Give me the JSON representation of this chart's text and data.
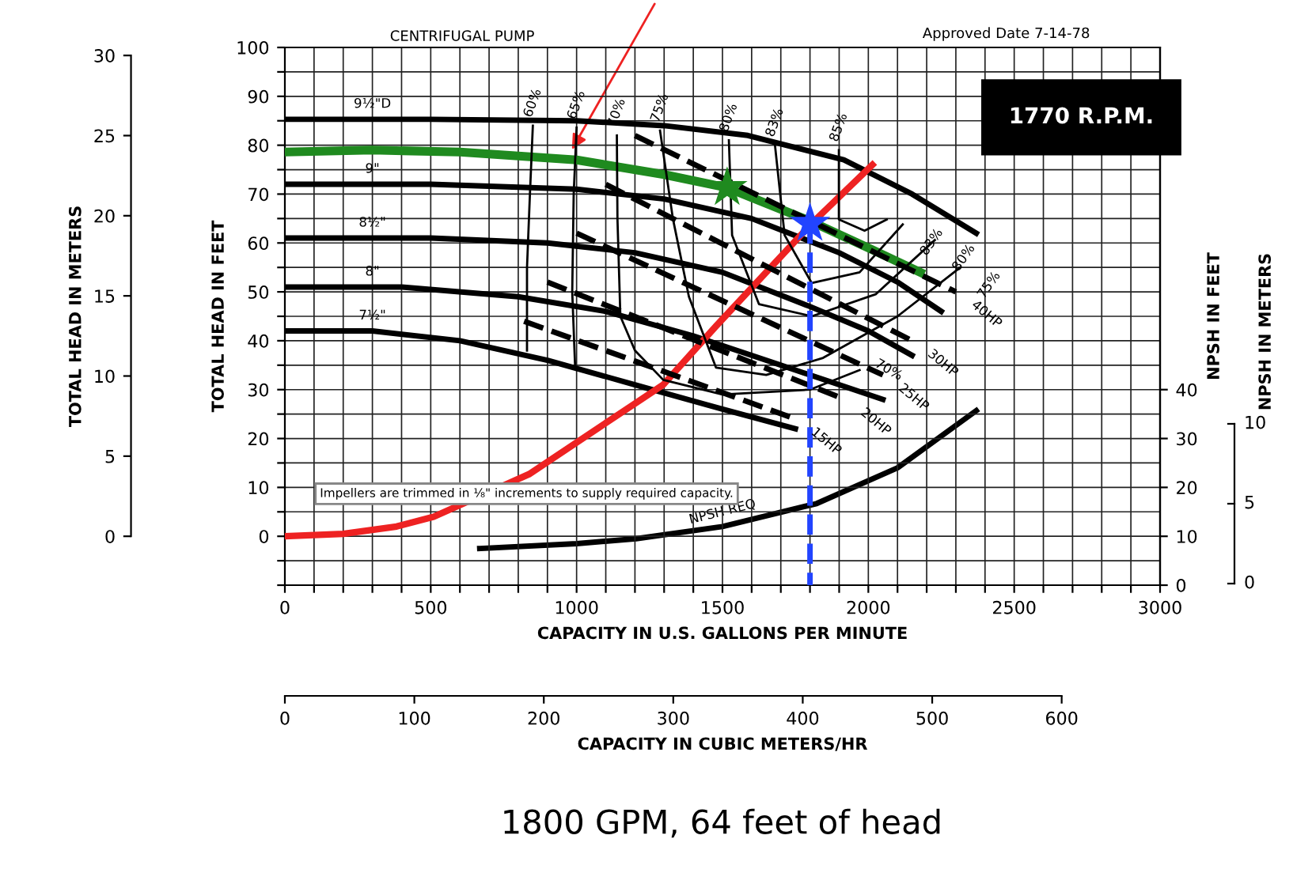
{
  "chart_data": {
    "type": "line",
    "title": "CENTRIFUGAL PUMP",
    "xlabel": "CAPACITY IN U.S. GALLONS PER MINUTE",
    "ylabel": "TOTAL HEAD IN FEET",
    "y2label": "TOTAL HEAD IN METERS",
    "y3label": "NPSH IN FEET",
    "x2label": "CAPACITY IN CUBIC METERS/HR",
    "xlim": [
      0,
      3000
    ],
    "ylim": [
      -10,
      100
    ],
    "y2lim": [
      -3.05,
      30.5
    ],
    "y3lim": [
      0,
      110
    ],
    "x2lim": [
      0,
      676
    ],
    "xticks": [
      0,
      {
        "value": 100,
        "label": null
      },
      {
        "value": 200,
        "label": null
      },
      {
        "value": 300,
        "label": null
      },
      {
        "value": 400,
        "label": null
      },
      500,
      {
        "value": 600,
        "label": null
      },
      {
        "value": 700,
        "label": null
      },
      {
        "value": 800,
        "label": null
      },
      {
        "value": 900,
        "label": null
      },
      1000,
      {
        "value": 1100,
        "label": null
      },
      {
        "value": 1200,
        "label": null
      },
      {
        "value": 1300,
        "label": null
      },
      {
        "value": 1400,
        "label": null
      },
      1500,
      {
        "value": 1600,
        "label": null
      },
      {
        "value": 1700,
        "label": null
      },
      {
        "value": 1800,
        "label": null
      },
      {
        "value": 1900,
        "label": null
      },
      2000,
      {
        "value": 2100,
        "label": null
      },
      {
        "value": 2200,
        "label": null
      },
      {
        "value": 2300,
        "label": null
      },
      {
        "value": 2400,
        "label": null
      },
      2500,
      {
        "value": 2600,
        "label": null
      },
      {
        "value": 2700,
        "label": null
      },
      {
        "value": 2800,
        "label": null
      },
      {
        "value": 2900,
        "label": null
      },
      3000
    ],
    "yticks": [
      {
        "value": -10,
        "label": null
      },
      {
        "value": -5,
        "label": null
      },
      0,
      {
        "value": 5,
        "label": null
      },
      10,
      {
        "value": 15,
        "label": null
      },
      20,
      {
        "value": 25,
        "label": null
      },
      30,
      {
        "value": 35,
        "label": null
      },
      40,
      {
        "value": 45,
        "label": null
      },
      50,
      {
        "value": 55,
        "label": null
      },
      60,
      {
        "value": 65,
        "label": null
      },
      70,
      {
        "value": 75,
        "label": null
      },
      80,
      {
        "value": 85,
        "label": null
      },
      90,
      {
        "value": 95,
        "label": null
      },
      100
    ],
    "y2ticks": [
      0,
      5,
      10,
      15,
      20,
      25,
      30
    ],
    "y3ticks": [
      0,
      10,
      20,
      30,
      40
    ],
    "x2ticks": [
      0,
      100,
      200,
      300,
      400,
      500,
      600
    ],
    "grid": true,
    "legend": false,
    "series": [
      {
        "color": "#000000",
        "x": [
          0,
          300,
          500,
          1000,
          1300,
          1587,
          1916,
          2150,
          2370
        ],
        "values": [
          85.3,
          85.3,
          85.3,
          85,
          84,
          82,
          77,
          70,
          62
        ]
      },
      {
        "color": "#000000",
        "x": [
          0,
          300,
          500,
          1000,
          1300,
          1600,
          1900,
          2100,
          2250
        ],
        "values": [
          72,
          72,
          72,
          71,
          69,
          65,
          58,
          52,
          46
        ]
      },
      {
        "color": "#000000",
        "x": [
          0,
          300,
          500,
          900,
          1200,
          1500,
          1800,
          2000,
          2150
        ],
        "values": [
          61,
          61,
          61,
          60,
          58,
          54,
          47,
          42,
          37
        ]
      },
      {
        "color": "#000000",
        "x": [
          0,
          300,
          400,
          800,
          1100,
          1400,
          1700,
          1900,
          2050
        ],
        "values": [
          51,
          51,
          51,
          49,
          46,
          41,
          35,
          31,
          28
        ]
      },
      {
        "color": "#000000",
        "x": [
          0,
          300,
          600,
          900,
          1200,
          1500,
          1750
        ],
        "values": [
          42,
          42,
          40,
          36,
          31,
          26,
          22
        ]
      },
      {
        "color": "#1f8a1f",
        "x": [
          0,
          300,
          600,
          1000,
          1300,
          1516,
          1800,
          2000,
          2178
        ],
        "values": [
          78.6,
          79,
          78.6,
          77,
          74,
          71.3,
          64.5,
          59,
          54
        ]
      },
      {
        "color": "#ee2222",
        "x": [
          0,
          200,
          383,
          510,
          837,
          1297,
          1478,
          1806,
          2014
        ],
        "values": [
          0,
          0.5,
          2,
          4,
          12.7,
          31,
          43,
          64,
          76
        ]
      },
      {
        "color": "#000000",
        "name": "NPSH REQ",
        "axis": "y3",
        "x": [
          668,
          1000,
          1204,
          1500,
          1823,
          2100,
          2370
        ],
        "values": [
          7.5,
          8.5,
          9.5,
          12,
          16.7,
          24,
          35.7
        ]
      },
      {
        "color": "#000000",
        "x": [
          850,
          840,
          830,
          830
        ],
        "values": [
          84,
          70,
          55,
          38
        ]
      },
      {
        "color": "#000000",
        "x": [
          1000,
          990,
          985,
          995
        ],
        "values": [
          83.6,
          70,
          50,
          34.5
        ]
      },
      {
        "color": "#000000",
        "x": [
          1138,
          1140,
          1150,
          1200,
          1297,
          1500,
          1800,
          1970
        ],
        "values": [
          82,
          65,
          45,
          38,
          32,
          29,
          30,
          34
        ]
      },
      {
        "color": "#000000",
        "x": [
          1286,
          1330,
          1385,
          1478,
          1650,
          1845,
          2100,
          2315
        ],
        "values": [
          83,
          65,
          49,
          34.5,
          33,
          36.5,
          45,
          55
        ]
      },
      {
        "color": "#000000",
        "x": [
          1522,
          1533,
          1625,
          1806,
          2025,
          2228
        ],
        "values": [
          81,
          61.6,
          47.5,
          45,
          49.5,
          60.6
        ]
      },
      {
        "color": "#000000",
        "x": [
          1680,
          1713,
          1806,
          1970,
          2118
        ],
        "values": [
          80,
          61.6,
          51.8,
          54,
          63.8
        ]
      },
      {
        "color": "#000000",
        "x": [
          1899,
          1899,
          1987,
          2063
        ],
        "values": [
          79,
          64.8,
          62.5,
          64.8
        ]
      },
      {
        "color": "#000000",
        "line_style": "dashed",
        "x": [
          820,
          1750
        ],
        "values": [
          44,
          24
        ]
      },
      {
        "color": "#000000",
        "line_style": "dashed",
        "x": [
          900,
          1920
        ],
        "values": [
          52,
          28
        ]
      },
      {
        "color": "#000000",
        "line_style": "dashed",
        "x": [
          1000,
          2050
        ],
        "values": [
          62,
          33
        ]
      },
      {
        "color": "#000000",
        "line_style": "dashed",
        "x": [
          1100,
          2150
        ],
        "values": [
          72,
          40
        ]
      },
      {
        "color": "#000000",
        "line_style": "dashed",
        "x": [
          1200,
          2300
        ],
        "values": [
          82,
          50
        ]
      },
      {
        "color": "#2244ff",
        "line_style": "dashed",
        "x": [
          1800,
          1800
        ],
        "values": [
          64,
          -10
        ]
      },
      {
        "type": "scatter",
        "marker": "star",
        "color": "#1f8a1f",
        "x": [
          1516
        ],
        "values": [
          71.3
        ]
      },
      {
        "type": "scatter",
        "marker": "star",
        "color": "#2244ff",
        "x": [
          1800
        ],
        "values": [
          64
        ]
      }
    ],
    "annotations": [
      "Approved Date 7-14-78",
      "1770 R.P.M.",
      "Impellers are trimmed in ⅛\" increments to supply required capacity.",
      "1800 GPM, 64 feet of head",
      "NPSH IN METERS",
      "10",
      "5",
      "0",
      {
        "text": "9½\"D",
        "x": 300,
        "y": 85.3
      },
      {
        "text": "9\"",
        "x": 300,
        "y": 72
      },
      {
        "text": "8½\"",
        "x": 300,
        "y": 61
      },
      {
        "text": "8\"",
        "x": 300,
        "y": 51
      },
      {
        "text": "7½\"",
        "x": 300,
        "y": 42
      },
      {
        "text": "60%",
        "x": 850,
        "y": 84
      },
      {
        "text": "65%",
        "x": 1000,
        "y": 83.6
      },
      {
        "text": "70%",
        "x": 1138,
        "y": 82
      },
      {
        "text": "75%",
        "x": 1286,
        "y": 83
      },
      {
        "text": "80%",
        "x": 1522,
        "y": 81
      },
      {
        "text": "83%",
        "x": 1680,
        "y": 80
      },
      {
        "text": "85%",
        "x": 1899,
        "y": 79
      },
      {
        "text": "83%",
        "x": 2118,
        "y": 63.8
      },
      {
        "text": "80%",
        "x": 2228,
        "y": 60.6
      },
      {
        "text": "75%",
        "x": 2315,
        "y": 55
      },
      {
        "text": "70%",
        "x": 1970,
        "y": 34
      },
      {
        "text": "15HP",
        "x": 1750,
        "y": 24
      },
      {
        "text": "20HP",
        "x": 1920,
        "y": 28
      },
      {
        "text": "25HP",
        "x": 2050,
        "y": 33
      },
      {
        "text": "30HP",
        "x": 2150,
        "y": 40
      },
      {
        "text": "40HP",
        "x": 2300,
        "y": 50
      }
    ]
  }
}
